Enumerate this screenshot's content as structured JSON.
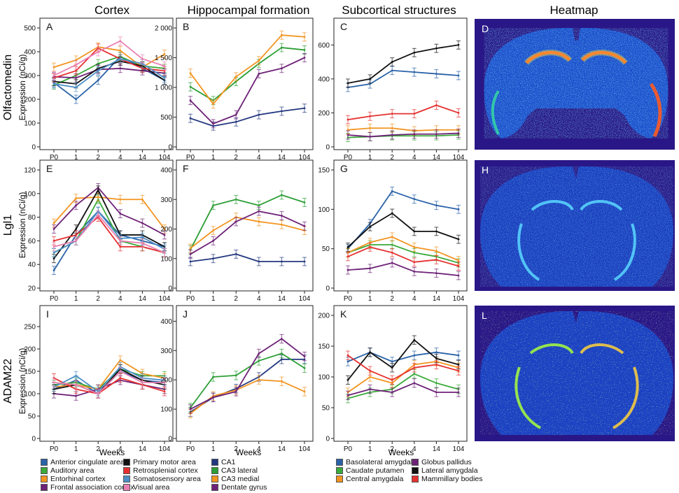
{
  "column_titles": [
    "Cortex",
    "Hippocampal formation",
    "Subcortical structures",
    "Heatmap"
  ],
  "row_titles": [
    "Olfactomedin",
    "Lgl1",
    "ADAM22"
  ],
  "ylabel": "Expression (nCi/g)",
  "xlabel": "Weeks",
  "xticks": [
    "P0",
    "1",
    "2",
    "4",
    "14",
    "104"
  ],
  "legends": {
    "cortex": [
      {
        "name": "Anterior cingulate area",
        "color": "#2a62a8"
      },
      {
        "name": "Auditory area",
        "color": "#3aaa3a"
      },
      {
        "name": "Entorhinal cortex",
        "color": "#f39420"
      },
      {
        "name": "Frontal association cortex",
        "color": "#6d2177"
      },
      {
        "name": "Primary motor area",
        "color": "#111111"
      },
      {
        "name": "Retrosplenial cortex",
        "color": "#e63030"
      },
      {
        "name": "Somatosensory area",
        "color": "#4d8fc8"
      },
      {
        "name": "Visual area",
        "color": "#e97fb2"
      }
    ],
    "hippocampal": [
      {
        "name": "CA1",
        "color": "#22377f"
      },
      {
        "name": "CA3 lateral",
        "color": "#2c9e35"
      },
      {
        "name": "CA3 medial",
        "color": "#f39420"
      },
      {
        "name": "Dentate gyrus",
        "color": "#6d2177"
      }
    ],
    "subcortical": [
      {
        "name": "Basolateral amygdala",
        "color": "#2a62a8"
      },
      {
        "name": "Caudate putamen",
        "color": "#3aaa3a"
      },
      {
        "name": "Central amygdala",
        "color": "#f39420"
      },
      {
        "name": "Globus pallidus",
        "color": "#6d2177"
      },
      {
        "name": "Lateral amygdala",
        "color": "#111111"
      },
      {
        "name": "Mammillary bodies",
        "color": "#e63030"
      }
    ]
  },
  "chart_data": [
    {
      "type": "line",
      "panel": "A",
      "title": "Olfactomedin - Cortex",
      "xlabel": "",
      "ylabel": "Expression (nCi/g)",
      "ylim": [
        0,
        500
      ],
      "yticks": [
        0,
        100,
        200,
        300,
        400,
        500
      ],
      "categories": [
        "P0",
        "1",
        "2",
        "4",
        "14",
        "104"
      ],
      "series": [
        {
          "name": "Anterior cingulate area",
          "color": "#2a62a8",
          "values": [
            270,
            200,
            280,
            380,
            330,
            280
          ]
        },
        {
          "name": "Auditory area",
          "color": "#3aaa3a",
          "values": [
            260,
            300,
            350,
            380,
            340,
            330
          ]
        },
        {
          "name": "Entorhinal cortex",
          "color": "#f39420",
          "values": [
            335,
            365,
            420,
            405,
            335,
            390
          ]
        },
        {
          "name": "Frontal association cortex",
          "color": "#6d2177",
          "values": [
            295,
            290,
            325,
            330,
            320,
            310
          ]
        },
        {
          "name": "Primary motor area",
          "color": "#111111",
          "values": [
            275,
            265,
            330,
            360,
            340,
            280
          ]
        },
        {
          "name": "Retrosplenial cortex",
          "color": "#e63030",
          "values": [
            290,
            320,
            415,
            370,
            330,
            320
          ]
        },
        {
          "name": "Somatosensory area",
          "color": "#4d8fc8",
          "values": [
            265,
            250,
            320,
            370,
            350,
            290
          ]
        },
        {
          "name": "Visual area",
          "color": "#e97fb2",
          "values": [
            300,
            345,
            400,
            445,
            370,
            340
          ]
        }
      ]
    },
    {
      "type": "line",
      "panel": "B",
      "title": "Olfactomedin - Hippocampal formation",
      "xlabel": "",
      "ylabel": "",
      "ylim": [
        0,
        2000
      ],
      "yticks": [
        0,
        500,
        1000,
        1500,
        2000
      ],
      "ytick_labels": [
        "0",
        "500",
        "1 000",
        "1 500",
        "2 000"
      ],
      "categories": [
        "P0",
        "1",
        "2",
        "4",
        "14",
        "104"
      ],
      "series": [
        {
          "name": "CA1",
          "color": "#22377f",
          "values": [
            480,
            350,
            420,
            540,
            600,
            650
          ]
        },
        {
          "name": "CA3 lateral",
          "color": "#2c9e35",
          "values": [
            1010,
            780,
            1100,
            1400,
            1670,
            1630
          ]
        },
        {
          "name": "CA3 medial",
          "color": "#f39420",
          "values": [
            1240,
            720,
            1180,
            1450,
            1880,
            1850
          ]
        },
        {
          "name": "Dentate gyrus",
          "color": "#6d2177",
          "values": [
            780,
            390,
            540,
            1230,
            1320,
            1500
          ]
        }
      ]
    },
    {
      "type": "line",
      "panel": "C",
      "title": "Olfactomedin - Subcortical structures",
      "xlabel": "",
      "ylabel": "",
      "ylim": [
        0,
        700
      ],
      "yticks": [
        0,
        200,
        400,
        600
      ],
      "categories": [
        "P0",
        "1",
        "2",
        "4",
        "14",
        "104"
      ],
      "series": [
        {
          "name": "Basolateral amygdala",
          "color": "#2a62a8",
          "values": [
            350,
            370,
            450,
            440,
            430,
            420
          ]
        },
        {
          "name": "Caudate putamen",
          "color": "#3aaa3a",
          "values": [
            55,
            60,
            65,
            65,
            65,
            70
          ]
        },
        {
          "name": "Central amygdala",
          "color": "#f39420",
          "values": [
            100,
            110,
            110,
            95,
            100,
            100
          ]
        },
        {
          "name": "Globus pallidus",
          "color": "#6d2177",
          "values": [
            70,
            60,
            70,
            75,
            75,
            80
          ]
        },
        {
          "name": "Lateral amygdala",
          "color": "#111111",
          "values": [
            375,
            400,
            500,
            555,
            580,
            600
          ]
        },
        {
          "name": "Mammillary bodies",
          "color": "#e63030",
          "values": [
            160,
            180,
            195,
            195,
            245,
            200
          ]
        }
      ]
    },
    {
      "type": "line",
      "panel": "E",
      "title": "Lgl1 - Cortex",
      "xlabel": "",
      "ylabel": "Expression (nCi/g)",
      "ylim": [
        20,
        120
      ],
      "yticks": [
        20,
        40,
        60,
        80,
        100,
        120
      ],
      "categories": [
        "P0",
        "1",
        "2",
        "4",
        "14",
        "104"
      ],
      "series": [
        {
          "name": "Anterior cingulate area",
          "color": "#2a62a8",
          "values": [
            35,
            65,
            85,
            65,
            60,
            55
          ]
        },
        {
          "name": "Auditory area",
          "color": "#3aaa3a",
          "values": [
            50,
            60,
            95,
            60,
            55,
            50
          ]
        },
        {
          "name": "Entorhinal cortex",
          "color": "#f39420",
          "values": [
            75,
            96,
            97,
            95,
            95,
            70
          ]
        },
        {
          "name": "Frontal association cortex",
          "color": "#6d2177",
          "values": [
            70,
            90,
            105,
            83,
            75,
            65
          ]
        },
        {
          "name": "Primary motor area",
          "color": "#111111",
          "values": [
            45,
            70,
            103,
            65,
            65,
            55
          ]
        },
        {
          "name": "Retrosplenial cortex",
          "color": "#e63030",
          "values": [
            60,
            65,
            80,
            55,
            55,
            50
          ]
        },
        {
          "name": "Somatosensory area",
          "color": "#4d8fc8",
          "values": [
            50,
            60,
            85,
            62,
            63,
            53
          ]
        },
        {
          "name": "Visual area",
          "color": "#e97fb2",
          "values": [
            55,
            60,
            82,
            60,
            58,
            50
          ]
        }
      ]
    },
    {
      "type": "line",
      "panel": "F",
      "title": "Lgl1 - Hippocampal formation",
      "xlabel": "",
      "ylabel": "",
      "ylim": [
        0,
        400
      ],
      "yticks": [
        0,
        100,
        200,
        300,
        400
      ],
      "categories": [
        "P0",
        "1",
        "2",
        "4",
        "14",
        "104"
      ],
      "series": [
        {
          "name": "CA1",
          "color": "#22377f",
          "values": [
            90,
            100,
            115,
            90,
            90,
            90
          ]
        },
        {
          "name": "CA3 lateral",
          "color": "#2c9e35",
          "values": [
            130,
            280,
            300,
            280,
            315,
            290
          ]
        },
        {
          "name": "CA3 medial",
          "color": "#f39420",
          "values": [
            135,
            195,
            240,
            225,
            215,
            195
          ]
        },
        {
          "name": "Dentate gyrus",
          "color": "#6d2177",
          "values": [
            115,
            160,
            225,
            260,
            245,
            210
          ]
        }
      ]
    },
    {
      "type": "line",
      "panel": "G",
      "title": "Lgl1 - Subcortical structures",
      "xlabel": "",
      "ylabel": "",
      "ylim": [
        0,
        150
      ],
      "yticks": [
        0,
        50,
        100,
        150
      ],
      "categories": [
        "P0",
        "1",
        "2",
        "4",
        "14",
        "104"
      ],
      "series": [
        {
          "name": "Basolateral amygdala",
          "color": "#2a62a8",
          "values": [
            50,
            82,
            123,
            113,
            105,
            100
          ]
        },
        {
          "name": "Caudate putamen",
          "color": "#3aaa3a",
          "values": [
            45,
            55,
            55,
            45,
            40,
            32
          ]
        },
        {
          "name": "Central amygdala",
          "color": "#f39420",
          "values": [
            45,
            58,
            65,
            52,
            47,
            35
          ]
        },
        {
          "name": "Globus pallidus",
          "color": "#6d2177",
          "values": [
            23,
            25,
            32,
            21,
            19,
            16
          ]
        },
        {
          "name": "Lateral amygdala",
          "color": "#111111",
          "values": [
            52,
            78,
            95,
            72,
            72,
            62
          ]
        },
        {
          "name": "Mammillary bodies",
          "color": "#e63030",
          "values": [
            40,
            52,
            45,
            33,
            36,
            28
          ]
        }
      ]
    },
    {
      "type": "line",
      "panel": "I",
      "title": "ADAM22 - Cortex",
      "xlabel": "Weeks",
      "ylabel": "Expression (nCi/g)",
      "ylim": [
        0,
        275
      ],
      "yticks": [
        0,
        50,
        100,
        150,
        200,
        250
      ],
      "categories": [
        "P0",
        "1",
        "2",
        "4",
        "14",
        "104"
      ],
      "series": [
        {
          "name": "Anterior cingulate area",
          "color": "#2a62a8",
          "values": [
            110,
            130,
            100,
            150,
            130,
            125
          ]
        },
        {
          "name": "Auditory area",
          "color": "#3aaa3a",
          "values": [
            120,
            125,
            110,
            155,
            140,
            140
          ]
        },
        {
          "name": "Entorhinal cortex",
          "color": "#f39420",
          "values": [
            115,
            120,
            110,
            175,
            145,
            135
          ]
        },
        {
          "name": "Frontal association cortex",
          "color": "#6d2177",
          "values": [
            100,
            95,
            110,
            130,
            120,
            110
          ]
        },
        {
          "name": "Primary motor area",
          "color": "#111111",
          "values": [
            110,
            120,
            100,
            155,
            130,
            120
          ]
        },
        {
          "name": "Retrosplenial cortex",
          "color": "#e63030",
          "values": [
            135,
            110,
            100,
            135,
            120,
            105
          ]
        },
        {
          "name": "Somatosensory area",
          "color": "#4d8fc8",
          "values": [
            115,
            140,
            105,
            160,
            135,
            130
          ]
        },
        {
          "name": "Visual area",
          "color": "#e97fb2",
          "values": [
            125,
            120,
            100,
            150,
            125,
            125
          ]
        }
      ]
    },
    {
      "type": "line",
      "panel": "J",
      "title": "ADAM22 - Hippocampal formation",
      "xlabel": "Weeks",
      "ylabel": "",
      "ylim": [
        0,
        420
      ],
      "yticks": [
        0,
        100,
        200,
        300,
        400
      ],
      "categories": [
        "P0",
        "1",
        "2",
        "4",
        "14",
        "104"
      ],
      "series": [
        {
          "name": "CA1",
          "color": "#22377f",
          "values": [
            90,
            140,
            170,
            210,
            270,
            270
          ]
        },
        {
          "name": "CA3 lateral",
          "color": "#2c9e35",
          "values": [
            105,
            210,
            215,
            265,
            290,
            240
          ]
        },
        {
          "name": "CA3 medial",
          "color": "#f39420",
          "values": [
            85,
            145,
            165,
            200,
            195,
            160
          ]
        },
        {
          "name": "Dentate gyrus",
          "color": "#6d2177",
          "values": [
            100,
            140,
            160,
            290,
            340,
            280
          ]
        }
      ]
    },
    {
      "type": "line",
      "panel": "K",
      "title": "ADAM22 - Subcortical structures",
      "xlabel": "Weeks",
      "ylabel": "",
      "ylim": [
        0,
        200
      ],
      "yticks": [
        0,
        50,
        100,
        150,
        200
      ],
      "categories": [
        "P0",
        "1",
        "2",
        "4",
        "14",
        "104"
      ],
      "series": [
        {
          "name": "Basolateral amygdala",
          "color": "#2a62a8",
          "values": [
            125,
            140,
            125,
            135,
            140,
            135
          ]
        },
        {
          "name": "Caudate putamen",
          "color": "#3aaa3a",
          "values": [
            65,
            75,
            80,
            105,
            90,
            80
          ]
        },
        {
          "name": "Central amygdala",
          "color": "#f39420",
          "values": [
            75,
            100,
            90,
            120,
            125,
            115
          ]
        },
        {
          "name": "Globus pallidus",
          "color": "#6d2177",
          "values": [
            70,
            80,
            75,
            90,
            75,
            75
          ]
        },
        {
          "name": "Lateral amygdala",
          "color": "#111111",
          "values": [
            95,
            140,
            115,
            160,
            130,
            120
          ]
        },
        {
          "name": "Mammillary bodies",
          "color": "#e63030",
          "values": [
            135,
            110,
            95,
            115,
            120,
            110
          ]
        }
      ]
    }
  ],
  "heatmaps": [
    {
      "panel": "D",
      "colormap": "jet"
    },
    {
      "panel": "H",
      "colormap": "jet"
    },
    {
      "panel": "L",
      "colormap": "jet"
    }
  ]
}
